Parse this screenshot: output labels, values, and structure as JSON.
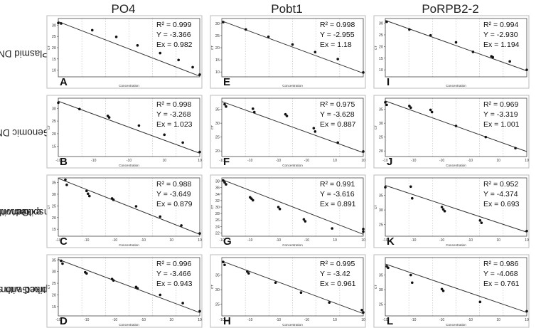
{
  "column_headers": [
    "PO4",
    "Pobt1",
    "PoRPB2-2"
  ],
  "row_labels": [
    [
      "Plasmid DNA"
    ],
    [
      "Genomic DNA"
    ],
    [
      "Genomic DNA",
      "spiked with",
      "cotton extract"
    ],
    [
      "Genomic DNA",
      "spiked with soil",
      "extract"
    ]
  ],
  "colors": {
    "line": "#333333",
    "point": "#111111",
    "frame": "#444444",
    "grid": "#bfbfbf"
  },
  "chart_data": [
    {
      "type": "scatter",
      "panel": "A",
      "xlabel": "Concentration",
      "ylabel": "CT",
      "ylim": [
        7,
        33
      ],
      "yticks": [
        10,
        15,
        20,
        25,
        30
      ],
      "xtick_labels": [],
      "stats": [
        "R² = 0.999",
        "Y = -3.366",
        "Ex = 0.982"
      ],
      "points": [
        [
          0.0,
          31.0
        ],
        [
          0.02,
          30.8
        ],
        [
          0.24,
          27.8
        ],
        [
          0.41,
          24.8
        ],
        [
          0.56,
          21.0
        ],
        [
          0.72,
          17.6
        ],
        [
          0.85,
          14.5
        ],
        [
          0.95,
          11.3
        ],
        [
          1.0,
          8.0
        ]
      ],
      "fit": [
        31.6,
        7.3
      ]
    },
    {
      "type": "scatter",
      "panel": "E",
      "xlabel": "Concentration",
      "ylabel": "CT",
      "ylim": [
        8,
        32
      ],
      "yticks": [
        10,
        15,
        20,
        25,
        30
      ],
      "xtick_labels": [],
      "stats": [
        "R² = 0.998",
        "Y = -2.955",
        "Ex = 1.18"
      ],
      "points": [
        [
          0.01,
          30.5
        ],
        [
          0.17,
          27.5
        ],
        [
          0.33,
          24.5
        ],
        [
          0.5,
          21.3
        ],
        [
          0.66,
          18.2
        ],
        [
          0.82,
          15.3
        ],
        [
          1.0,
          9.8
        ]
      ],
      "fit": [
        31.0,
        9.5
      ]
    },
    {
      "type": "scatter",
      "panel": "I",
      "xlabel": "Concentration",
      "ylabel": "CT",
      "ylim": [
        7,
        32
      ],
      "yticks": [
        10,
        15,
        20,
        25,
        30
      ],
      "xtick_labels": [],
      "stats": [
        "R² = 0.994",
        "Y = -2.930",
        "Ex = 1.194"
      ],
      "points": [
        [
          0.01,
          30.6
        ],
        [
          0.17,
          27.3
        ],
        [
          0.32,
          24.8
        ],
        [
          0.5,
          21.8
        ],
        [
          0.62,
          17.7
        ],
        [
          0.75,
          15.8
        ],
        [
          0.76,
          15.4
        ],
        [
          0.88,
          13.6
        ],
        [
          1.0,
          10.0
        ]
      ],
      "fit": [
        31.2,
        9.6
      ]
    },
    {
      "type": "scatter",
      "panel": "B",
      "xlabel": "Concentration",
      "ylabel": "CT",
      "ylim": [
        11,
        34
      ],
      "yticks": [
        15,
        20,
        25,
        30
      ],
      "xtick_labels": [
        "-10",
        "-10",
        "-10",
        "10",
        "10"
      ],
      "stats": [
        "R² = 0.998",
        "Y = -3.268",
        "Ex = 1.023"
      ],
      "points": [
        [
          0.0,
          32.2
        ],
        [
          0.15,
          29.7
        ],
        [
          0.35,
          27.0
        ],
        [
          0.36,
          26.4
        ],
        [
          0.57,
          23.2
        ],
        [
          0.75,
          19.6
        ],
        [
          0.88,
          16.5
        ],
        [
          1.0,
          12.8
        ]
      ],
      "fit": [
        32.8,
        12.3
      ]
    },
    {
      "type": "scatter",
      "panel": "F",
      "xlabel": "Concentration",
      "ylabel": "CT",
      "ylim": [
        18,
        39
      ],
      "yticks": [
        20,
        25,
        30,
        35
      ],
      "xtick_labels": [
        "-10",
        "-10",
        "-10",
        "-10",
        "10",
        "10"
      ],
      "stats": [
        "R² = 0.975",
        "Y = -3.628",
        "Ex = 0.887"
      ],
      "points": [
        [
          0.02,
          36.8
        ],
        [
          0.03,
          36.0
        ],
        [
          0.22,
          35.2
        ],
        [
          0.23,
          34.0
        ],
        [
          0.45,
          33.2
        ],
        [
          0.46,
          32.6
        ],
        [
          0.65,
          28.2
        ],
        [
          0.66,
          27.0
        ],
        [
          0.82,
          23.0
        ],
        [
          1.0,
          19.8
        ]
      ],
      "fit": [
        37.8,
        19.4
      ]
    },
    {
      "type": "scatter",
      "panel": "J",
      "xlabel": "Concentration",
      "ylabel": "CT",
      "ylim": [
        18,
        39
      ],
      "yticks": [
        20,
        25,
        30,
        35
      ],
      "xtick_labels": [
        "-10",
        "-10",
        "-10",
        "-10",
        "10",
        "10"
      ],
      "stats": [
        "R² = 0.969",
        "Y = -3.319",
        "Ex = 1.001"
      ],
      "points": [
        [
          0.0,
          37.5
        ],
        [
          0.01,
          36.6
        ],
        [
          0.17,
          36.2
        ],
        [
          0.18,
          35.6
        ],
        [
          0.32,
          34.8
        ],
        [
          0.33,
          34.0
        ],
        [
          0.5,
          29.0
        ],
        [
          0.71,
          25.0
        ],
        [
          0.92,
          21.0
        ]
      ],
      "fit": [
        38.0,
        19.8
      ]
    },
    {
      "type": "scatter",
      "panel": "C",
      "xlabel": "Concentration",
      "ylabel": "CT",
      "ylim": [
        12,
        37
      ],
      "yticks": [
        15,
        20,
        25,
        30,
        35
      ],
      "xtick_labels": [
        "-10",
        "-10",
        "-10",
        "-10",
        "10",
        "10"
      ],
      "stats": [
        "R² = 0.988",
        "Y = -3.649",
        "Ex = 0.879"
      ],
      "points": [
        [
          0.05,
          36.2
        ],
        [
          0.06,
          34.0
        ],
        [
          0.2,
          31.4
        ],
        [
          0.21,
          30.2
        ],
        [
          0.22,
          29.2
        ],
        [
          0.38,
          28.2
        ],
        [
          0.39,
          27.6
        ],
        [
          0.55,
          24.8
        ],
        [
          0.72,
          20.4
        ],
        [
          0.87,
          16.6
        ],
        [
          1.0,
          13.2
        ]
      ],
      "fit": [
        36.8,
        12.8
      ]
    },
    {
      "type": "scatter",
      "panel": "G",
      "xlabel": "Concentration",
      "ylabel": "CT",
      "ylim": [
        21,
        39
      ],
      "yticks": [
        22,
        24,
        26,
        28,
        30,
        32,
        34,
        36,
        38
      ],
      "xtick_labels": [
        "-10",
        "-10",
        "-10",
        "-10",
        "10",
        "10"
      ],
      "stats": [
        "R² = 0.991",
        "Y = -3.616",
        "Ex = 0.891"
      ],
      "points": [
        [
          0.01,
          38.2
        ],
        [
          0.02,
          37.6
        ],
        [
          0.03,
          37.0
        ],
        [
          0.2,
          33.0
        ],
        [
          0.21,
          32.6
        ],
        [
          0.22,
          32.1
        ],
        [
          0.4,
          30.0
        ],
        [
          0.41,
          29.4
        ],
        [
          0.58,
          26.2
        ],
        [
          0.59,
          25.6
        ],
        [
          0.78,
          23.4
        ],
        [
          1.0,
          22.4
        ],
        [
          1.0,
          23.2
        ]
      ],
      "fit": [
        38.5,
        21.6
      ]
    },
    {
      "type": "scatter",
      "panel": "K",
      "xlabel": "Concentration",
      "ylabel": "CT",
      "ylim": [
        21,
        41
      ],
      "yticks": [
        25,
        30,
        35
      ],
      "xtick_labels": [
        "-10",
        "-10",
        "-10",
        "-10",
        "10",
        "10"
      ],
      "stats": [
        "R² = 0.952",
        "Y = -4.374",
        "Ex = 0.693"
      ],
      "points": [
        [
          0.0,
          37.8
        ],
        [
          0.18,
          38.0
        ],
        [
          0.19,
          34.0
        ],
        [
          0.4,
          31.0
        ],
        [
          0.41,
          30.2
        ],
        [
          0.42,
          29.6
        ],
        [
          0.67,
          26.4
        ],
        [
          0.68,
          25.6
        ],
        [
          1.0,
          22.8
        ]
      ],
      "fit": [
        38.4,
        22.4
      ]
    },
    {
      "type": "scatter",
      "panel": "D",
      "xlabel": "Concentration",
      "ylabel": "CT",
      "ylim": [
        11,
        36
      ],
      "yticks": [
        15,
        20,
        25,
        30,
        35
      ],
      "xtick_labels": [
        "-10",
        "-10",
        "-10",
        "-10",
        "10",
        "10"
      ],
      "stats": [
        "R² = 0.996",
        "Y = -3.466",
        "Ex = 0.943"
      ],
      "points": [
        [
          0.02,
          34.6
        ],
        [
          0.03,
          33.4
        ],
        [
          0.19,
          29.7
        ],
        [
          0.2,
          29.2
        ],
        [
          0.38,
          26.8
        ],
        [
          0.39,
          26.2
        ],
        [
          0.55,
          23.4
        ],
        [
          0.56,
          22.8
        ],
        [
          0.72,
          20.0
        ],
        [
          0.88,
          16.5
        ],
        [
          1.0,
          13.0
        ]
      ],
      "fit": [
        35.2,
        12.4
      ]
    },
    {
      "type": "scatter",
      "panel": "H",
      "xlabel": "Concentration",
      "ylabel": "CT",
      "ylim": [
        21,
        41
      ],
      "yticks": [
        25,
        30,
        35
      ],
      "xtick_labels": [
        "-10",
        "-10",
        "-10",
        "-10",
        "10",
        "10"
      ],
      "stats": [
        "R² = 0.995",
        "Y = -3.42",
        "Ex = 0.961"
      ],
      "points": [
        [
          0.01,
          39.5
        ],
        [
          0.02,
          38.5
        ],
        [
          0.18,
          36.2
        ],
        [
          0.19,
          35.6
        ],
        [
          0.38,
          32.4
        ],
        [
          0.56,
          29.0
        ],
        [
          0.76,
          25.6
        ],
        [
          0.99,
          23.0
        ],
        [
          1.0,
          22.2
        ]
      ],
      "fit": [
        39.8,
        21.8
      ]
    },
    {
      "type": "scatter",
      "panel": "L",
      "xlabel": "Concentration",
      "ylabel": "CT",
      "ylim": [
        21,
        41
      ],
      "yticks": [
        25,
        30,
        35
      ],
      "xtick_labels": [
        "-10",
        "-10",
        "-10",
        "-10",
        "10",
        "10"
      ],
      "stats": [
        "R² = 0.986",
        "Y = -4.068",
        "Ex = 0.761"
      ],
      "points": [
        [
          0.01,
          38.0
        ],
        [
          0.02,
          37.5
        ],
        [
          0.18,
          35.0
        ],
        [
          0.19,
          32.4
        ],
        [
          0.4,
          30.2
        ],
        [
          0.41,
          29.6
        ],
        [
          0.67,
          25.8
        ],
        [
          1.0,
          22.6
        ]
      ],
      "fit": [
        38.8,
        22.2
      ]
    }
  ]
}
